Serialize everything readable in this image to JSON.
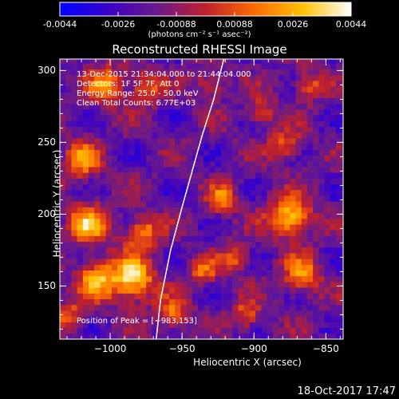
{
  "colorbar": {
    "tick_labels": [
      "-0.0044",
      "-0.0026",
      "-0.00088",
      "0.00088",
      "0.0026",
      "0.0044"
    ],
    "units": "(photons cm⁻² s⁻¹ asec⁻²)",
    "colormap": [
      "#0000ff",
      "#3a00c8",
      "#6a1a8a",
      "#c0202a",
      "#ff6a00",
      "#ffc000",
      "#ffffff"
    ]
  },
  "chart_data": {
    "type": "heatmap",
    "title": "Reconstructed RHESSI Image",
    "xlabel": "Heliocentric X (arcsec)",
    "ylabel": "Heliocentric Y (arcsec)",
    "xlim": [
      -1035,
      -838
    ],
    "ylim": [
      113,
      308
    ],
    "x_ticks": [
      -1000,
      -950,
      -900,
      -850
    ],
    "x_tick_labels": [
      "−1000",
      "−950",
      "−900",
      "−850"
    ],
    "y_ticks": [
      150,
      200,
      250,
      300
    ],
    "y_tick_labels": [
      "150",
      "200",
      "250",
      "300"
    ],
    "annotations": [
      "13-Dec-2015 21:34:04.000 to 21:44:04.000",
      "Detectors: 1F 5F 7F, Att 0",
      "Energy Range: 25.0 - 50.0 keV",
      "Clean    Total Counts: 6.77E+03"
    ],
    "peak_label": "Position of Peak = [−983,153]",
    "peak": [
      -983,
      153
    ],
    "limb_curve": [
      [
        -968,
        113
      ],
      [
        -965,
        140
      ],
      [
        -958,
        175
      ],
      [
        -950,
        205
      ],
      [
        -943,
        230
      ],
      [
        -936,
        255
      ],
      [
        -928,
        280
      ],
      [
        -921,
        308
      ]
    ],
    "sources": [
      {
        "x": -985,
        "y": 155,
        "r": 11,
        "v": 1.0
      },
      {
        "x": -1010,
        "y": 155,
        "r": 9,
        "v": 0.75
      },
      {
        "x": -1015,
        "y": 193,
        "r": 10,
        "v": 0.8
      },
      {
        "x": -977,
        "y": 188,
        "r": 8,
        "v": 0.7
      },
      {
        "x": -1020,
        "y": 238,
        "r": 9,
        "v": 0.65
      },
      {
        "x": -1003,
        "y": 290,
        "r": 9,
        "v": 0.7
      },
      {
        "x": -975,
        "y": 288,
        "r": 8,
        "v": 0.6
      },
      {
        "x": -957,
        "y": 130,
        "r": 8,
        "v": 0.6
      },
      {
        "x": -935,
        "y": 160,
        "r": 7,
        "v": 0.55
      },
      {
        "x": -922,
        "y": 210,
        "r": 7,
        "v": 0.65
      },
      {
        "x": -912,
        "y": 170,
        "r": 7,
        "v": 0.5
      },
      {
        "x": -875,
        "y": 198,
        "r": 10,
        "v": 0.95
      },
      {
        "x": -867,
        "y": 158,
        "r": 9,
        "v": 0.7
      },
      {
        "x": -905,
        "y": 130,
        "r": 7,
        "v": 0.55
      },
      {
        "x": -878,
        "y": 248,
        "r": 8,
        "v": 0.55
      },
      {
        "x": -895,
        "y": 272,
        "r": 7,
        "v": 0.5
      },
      {
        "x": -862,
        "y": 290,
        "r": 7,
        "v": 0.55
      },
      {
        "x": -930,
        "y": 290,
        "r": 7,
        "v": 0.5
      },
      {
        "x": -1028,
        "y": 130,
        "r": 7,
        "v": 0.5
      }
    ]
  },
  "footer": {
    "timestamp": "18-Oct-2017 17:47"
  }
}
